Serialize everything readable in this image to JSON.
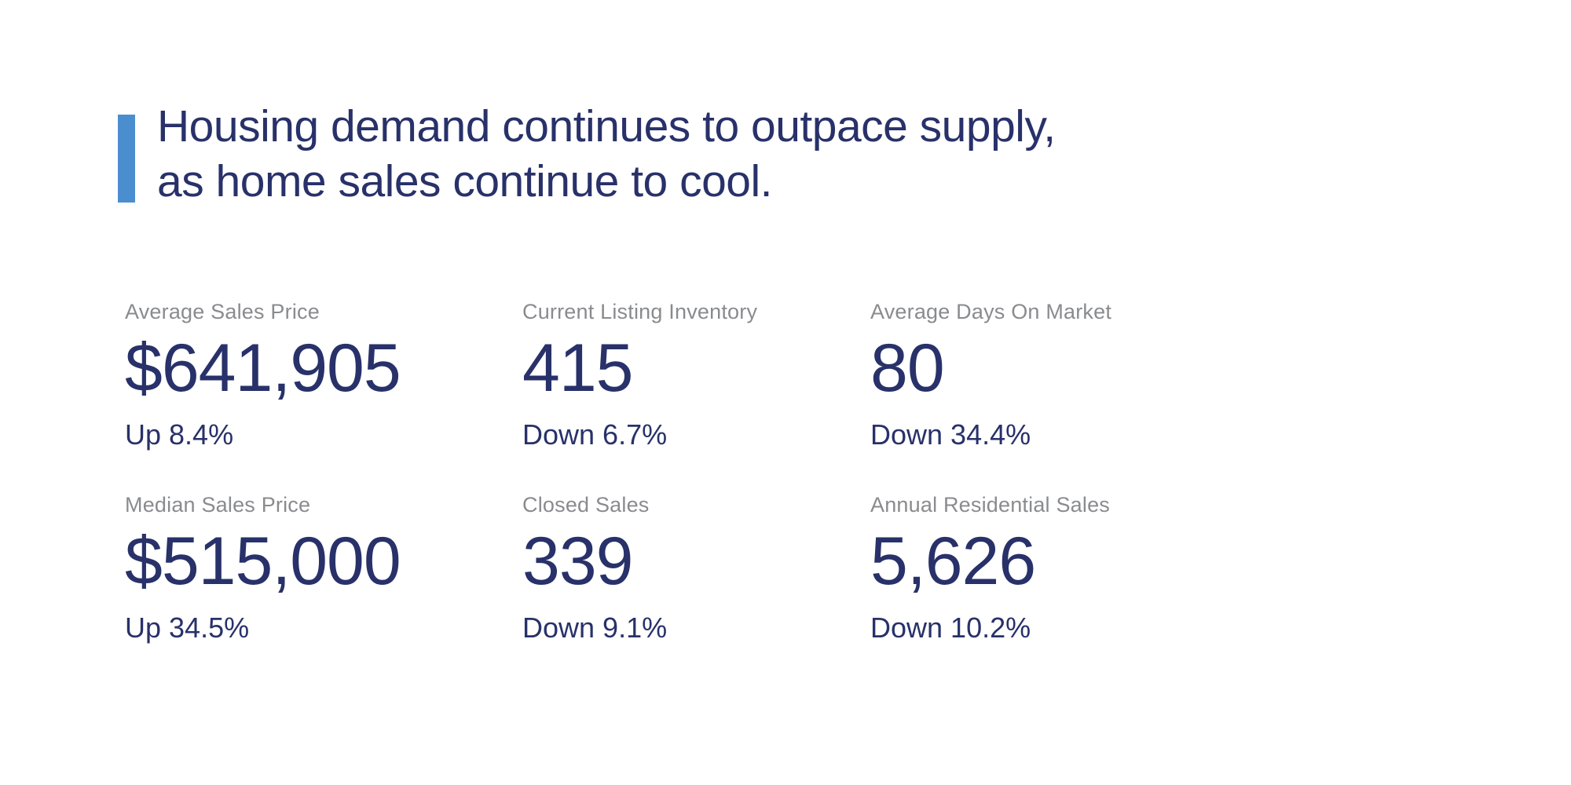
{
  "colors": {
    "background": "#ffffff",
    "accent_bar_blue": "#4b8ed0",
    "navy_text": "#283169",
    "label_gray": "#8a8b8e"
  },
  "headline": {
    "line1": "Housing demand continues to outpace supply,",
    "line2": "as home sales continue to cool."
  },
  "stats": [
    {
      "label": "Average Sales Price",
      "value": "$641,905",
      "change": "Up 8.4%"
    },
    {
      "label": "Current Listing Inventory",
      "value": "415",
      "change": "Down 6.7%"
    },
    {
      "label": "Average Days On Market",
      "value": "80",
      "change": "Down 34.4%"
    },
    {
      "label": "Median Sales Price",
      "value": "$515,000",
      "change": "Up 34.5%"
    },
    {
      "label": "Closed Sales",
      "value": "339",
      "change": "Down 9.1%"
    },
    {
      "label": "Annual Residential Sales",
      "value": "5,626",
      "change": "Down 10.2%"
    }
  ]
}
